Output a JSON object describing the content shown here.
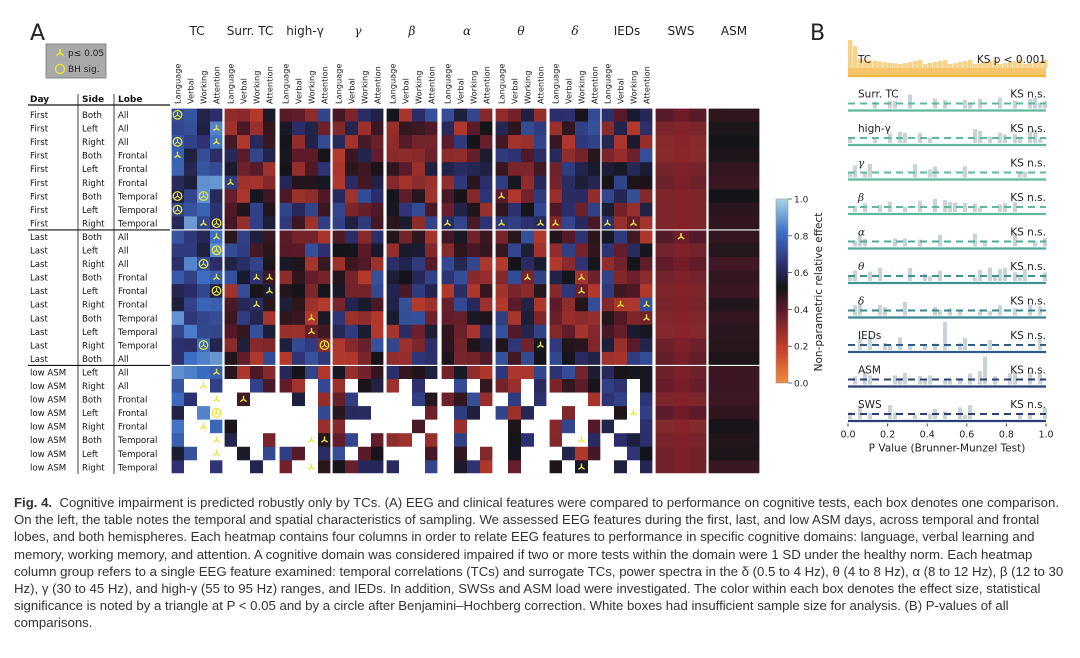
{
  "panel_a_letter": "A",
  "panel_b_letter": "B",
  "legend": {
    "triangle_label": "p≤ 0.05",
    "circle_label": "BH sig.",
    "triangle_icon": "triangle-marker-icon",
    "circle_icon": "circle-marker-icon"
  },
  "table": {
    "headers": [
      "Day",
      "Side",
      "Lobe"
    ],
    "rows": [
      [
        "First",
        "Both",
        "All"
      ],
      [
        "First",
        "Left",
        "All"
      ],
      [
        "First",
        "Right",
        "All"
      ],
      [
        "First",
        "Both",
        "Frontal"
      ],
      [
        "First",
        "Left",
        "Frontal"
      ],
      [
        "First",
        "Right",
        "Frontal"
      ],
      [
        "First",
        "Both",
        "Temporal"
      ],
      [
        "First",
        "Left",
        "Temporal"
      ],
      [
        "First",
        "Right",
        "Temporal"
      ],
      [
        "Last",
        "Both",
        "All"
      ],
      [
        "Last",
        "Left",
        "All"
      ],
      [
        "Last",
        "Right",
        "All"
      ],
      [
        "Last",
        "Both",
        "Frontal"
      ],
      [
        "Last",
        "Left",
        "Frontal"
      ],
      [
        "Last",
        "Right",
        "Frontal"
      ],
      [
        "Last",
        "Both",
        "Temporal"
      ],
      [
        "Last",
        "Left",
        "Temporal"
      ],
      [
        "Last",
        "Right",
        "Temporal"
      ],
      [
        "Last",
        "Both",
        "All"
      ],
      [
        "low ASM",
        "Left",
        "All"
      ],
      [
        "low ASM",
        "Right",
        "All"
      ],
      [
        "low ASM",
        "Both",
        "Frontal"
      ],
      [
        "low ASM",
        "Left",
        "Frontal"
      ],
      [
        "low ASM",
        "Right",
        "Frontal"
      ],
      [
        "low ASM",
        "Both",
        "Temporal"
      ],
      [
        "low ASM",
        "Left",
        "Temporal"
      ],
      [
        "low ASM",
        "Right",
        "Temporal"
      ]
    ]
  },
  "groups": [
    "TC",
    "Surr. TC",
    "high-γ",
    "γ",
    "β",
    "α",
    "θ",
    "δ",
    "IEDs",
    "SWS",
    "ASM"
  ],
  "subcolumns": [
    "Language",
    "Verbal",
    "Working",
    "Attention"
  ],
  "colorbar": {
    "label": "Non-parametric relative effect",
    "ticks": [
      "1.0",
      "0.8",
      "0.6",
      "0.4",
      "0.2",
      "0.0"
    ]
  },
  "panel_b": {
    "rows": [
      {
        "label": "TC",
        "ks": "KS p < 0.001",
        "color": "#f2b340"
      },
      {
        "label": "Surr. TC",
        "ks": "KS n.s.",
        "color": "#5fb89a"
      },
      {
        "label": "high-γ",
        "ks": "KS n.s.",
        "color": "#5fb89a"
      },
      {
        "label": "γ",
        "ks": "KS n.s.",
        "color": "#5fb89a"
      },
      {
        "label": "β",
        "ks": "KS n.s.",
        "color": "#5fb89a"
      },
      {
        "label": "α",
        "ks": "KS n.s.",
        "color": "#4fa99a"
      },
      {
        "label": "θ",
        "ks": "KS n.s.",
        "color": "#3f9493"
      },
      {
        "label": "δ",
        "ks": "KS n.s.",
        "color": "#3a8590"
      },
      {
        "label": "IEDs",
        "ks": "KS n.s.",
        "color": "#2f5f86"
      },
      {
        "label": "ASM",
        "ks": "KS n.s.",
        "color": "#2b3f76"
      },
      {
        "label": "SWS",
        "ks": "KS n.s.",
        "color": "#2b3f76"
      }
    ],
    "xticks": [
      "0.0",
      "0.2",
      "0.4",
      "0.6",
      "0.8",
      "1.0"
    ],
    "xlabel": "P Value (Brunner-Munzel Test)"
  },
  "caption": {
    "label": "Fig. 4.",
    "text": "Cognitive impairment is predicted robustly only by TCs. (A) EEG and clinical features were compared to performance on cognitive tests, each box denotes one comparison. On the left, the table notes the temporal and spatial characteristics of sampling. We assessed EEG features during the first, last, and low ASM days, across temporal and frontal lobes, and both hemispheres. Each heatmap contains four columns in order to relate EEG features to performance in specific cognitive domains: language, verbal learning and memory, working memory, and attention. A cognitive domain was considered impaired if two or more tests within the domain were 1 SD under the healthy norm. Each heatmap column group refers to a single EEG feature examined: temporal correlations (TCs) and surrogate TCs, power spectra in the δ (0.5 to 4 Hz), θ (4 to 8 Hz), α (8 to 12 Hz), β (12 to 30 Hz), γ (30 to 45 Hz), and high-γ (55 to 95 Hz) ranges, and IEDs. In addition, SWSs and ASM load were investigated. The color within each box denotes the effect size, statistical significance is noted by a triangle at P < 0.05 and by a circle after Benjamini–Hochberg correction. White boxes had insufficient sample size for analysis. (B) P-values of all comparisons."
  }
}
